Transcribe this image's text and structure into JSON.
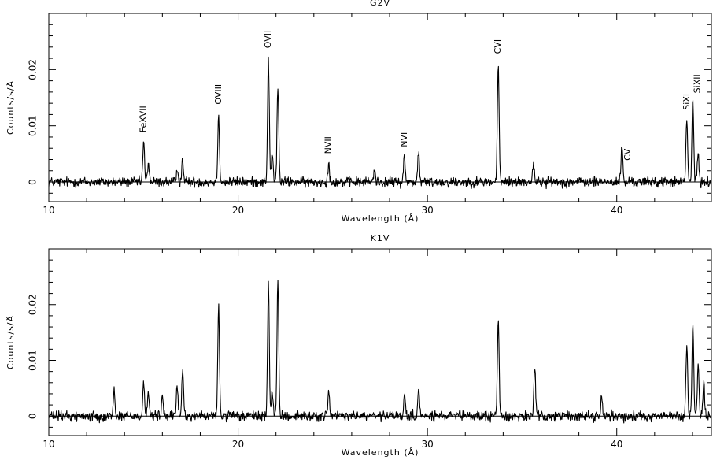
{
  "chart_data": [
    {
      "type": "line",
      "title": "G2V",
      "xlabel": "Wavelength (Å)",
      "ylabel": "Counts/s/Å",
      "xlim": [
        10,
        45
      ],
      "ylim": [
        -0.0035,
        0.03
      ],
      "xticks": [
        10,
        20,
        30,
        40
      ],
      "yticks": [
        0,
        0.01,
        0.02
      ],
      "ytick_labels": [
        "0",
        "0.01",
        "0.02"
      ],
      "zero_line": true,
      "grid": false,
      "noise_level": 0.0009,
      "peaks": [
        {
          "x": 15.01,
          "y": 0.0072
        },
        {
          "x": 15.26,
          "y": 0.0035
        },
        {
          "x": 16.8,
          "y": 0.0022
        },
        {
          "x": 17.07,
          "y": 0.0042
        },
        {
          "x": 18.97,
          "y": 0.012
        },
        {
          "x": 21.6,
          "y": 0.022
        },
        {
          "x": 21.8,
          "y": 0.0052
        },
        {
          "x": 22.1,
          "y": 0.017
        },
        {
          "x": 24.78,
          "y": 0.0032
        },
        {
          "x": 27.2,
          "y": 0.0022
        },
        {
          "x": 28.78,
          "y": 0.0044
        },
        {
          "x": 29.53,
          "y": 0.0052
        },
        {
          "x": 33.74,
          "y": 0.021
        },
        {
          "x": 35.6,
          "y": 0.0035
        },
        {
          "x": 40.27,
          "y": 0.0065
        },
        {
          "x": 43.7,
          "y": 0.011
        },
        {
          "x": 44.02,
          "y": 0.015
        },
        {
          "x": 44.3,
          "y": 0.005
        }
      ],
      "annotations": [
        {
          "label": "FeXVII",
          "x": 15.0,
          "y": 0.0088
        },
        {
          "label": "OVIII",
          "x": 18.97,
          "y": 0.0138
        },
        {
          "label": "OVII",
          "x": 21.6,
          "y": 0.0238
        },
        {
          "label": "NVII",
          "x": 24.78,
          "y": 0.005
        },
        {
          "label": "NVI",
          "x": 28.78,
          "y": 0.0062
        },
        {
          "label": "CVI",
          "x": 33.74,
          "y": 0.0228
        },
        {
          "label": "CV",
          "x": 40.6,
          "y": 0.0038
        },
        {
          "label": "SiXI",
          "x": 43.72,
          "y": 0.0128
        },
        {
          "label": "SiXII",
          "x": 44.28,
          "y": 0.0158
        }
      ]
    },
    {
      "type": "line",
      "title": "K1V",
      "xlabel": "Wavelength (Å)",
      "ylabel": "Counts/s/Å",
      "xlim": [
        10,
        45
      ],
      "ylim": [
        -0.0035,
        0.03
      ],
      "xticks": [
        10,
        20,
        30,
        40
      ],
      "yticks": [
        0,
        0.01,
        0.02
      ],
      "ytick_labels": [
        "0",
        "0.01",
        "0.02"
      ],
      "zero_line": true,
      "grid": false,
      "noise_level": 0.0009,
      "peaks": [
        {
          "x": 13.45,
          "y": 0.0045
        },
        {
          "x": 15.01,
          "y": 0.0062
        },
        {
          "x": 15.26,
          "y": 0.0042
        },
        {
          "x": 16.0,
          "y": 0.0035
        },
        {
          "x": 16.78,
          "y": 0.0055
        },
        {
          "x": 17.07,
          "y": 0.0085
        },
        {
          "x": 18.97,
          "y": 0.0195
        },
        {
          "x": 21.6,
          "y": 0.0235
        },
        {
          "x": 21.8,
          "y": 0.0045
        },
        {
          "x": 22.1,
          "y": 0.024
        },
        {
          "x": 24.78,
          "y": 0.0045
        },
        {
          "x": 28.78,
          "y": 0.0035
        },
        {
          "x": 29.53,
          "y": 0.0048
        },
        {
          "x": 33.74,
          "y": 0.0175
        },
        {
          "x": 35.67,
          "y": 0.0085
        },
        {
          "x": 39.2,
          "y": 0.0035
        },
        {
          "x": 43.7,
          "y": 0.013
        },
        {
          "x": 44.02,
          "y": 0.0165
        },
        {
          "x": 44.3,
          "y": 0.009
        },
        {
          "x": 44.6,
          "y": 0.006
        }
      ],
      "annotations": []
    }
  ]
}
